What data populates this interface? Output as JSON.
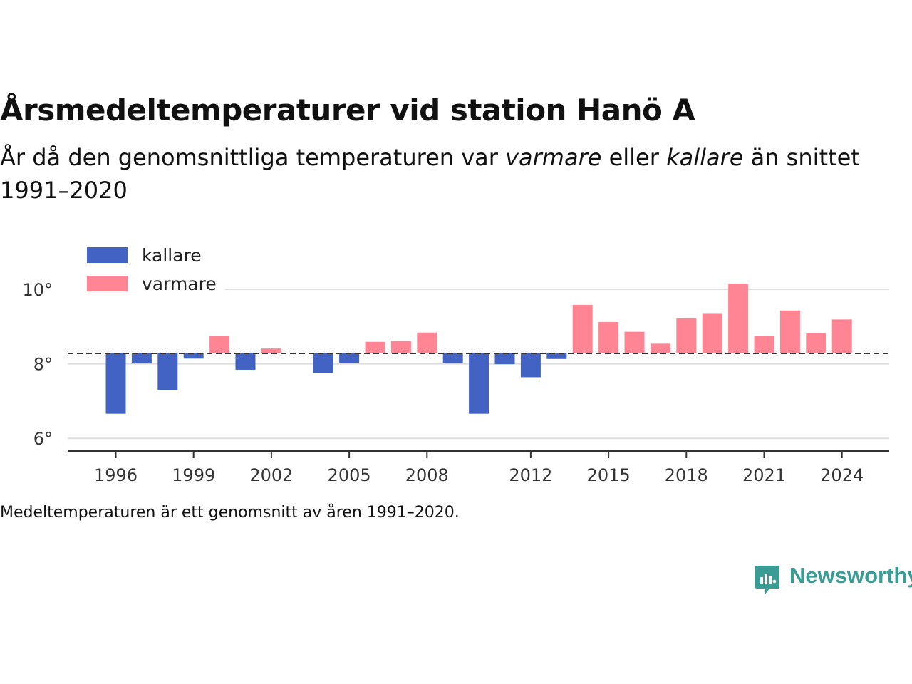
{
  "title": "Årsmedeltemperaturer vid station Hanö A",
  "subtitle": {
    "part1": "År då den genomsnittliga temperaturen var ",
    "warmer_word": "varmare",
    "part2": " eller ",
    "colder_word": "kallare",
    "part3": " än snittet 1991–2020"
  },
  "note": "Medeltemperaturen är ett genomsnitt av åren 1991–2020.",
  "brand": {
    "name": "Newsworthy",
    "icon": "newsworthy-logo-icon",
    "color": "#3a9d95"
  },
  "chart_data": {
    "type": "bar",
    "baseline": 8.28,
    "x": [
      1996,
      1997,
      1998,
      1999,
      2000,
      2001,
      2002,
      2004,
      2005,
      2006,
      2007,
      2008,
      2009,
      2010,
      2011,
      2012,
      2013,
      2014,
      2015,
      2016,
      2017,
      2018,
      2019,
      2020,
      2021,
      2022,
      2023,
      2024
    ],
    "values": [
      6.66,
      8.01,
      7.29,
      8.14,
      8.74,
      7.84,
      8.41,
      7.76,
      8.03,
      8.59,
      8.61,
      8.84,
      8.01,
      6.66,
      7.99,
      7.64,
      8.13,
      9.58,
      9.12,
      8.86,
      8.54,
      9.22,
      9.36,
      10.15,
      8.74,
      9.43,
      8.82,
      9.19
    ],
    "xticks": [
      1996,
      1999,
      2002,
      2005,
      2008,
      2012,
      2015,
      2018,
      2021,
      2024
    ],
    "yticks": [
      6,
      8,
      10
    ],
    "ytick_labels": [
      "6°",
      "8°",
      "10°"
    ],
    "ylim": [
      5.65,
      11.2
    ],
    "legend": [
      {
        "label": "kallare",
        "color": "#4263c4"
      },
      {
        "label": "varmare",
        "color": "#ff8494"
      }
    ],
    "legend_position": "top-left",
    "colors": {
      "colder": "#4263c4",
      "warmer": "#ff8494",
      "grid": "#dddddd",
      "baseline": "#333333",
      "axis": "#333333"
    }
  }
}
